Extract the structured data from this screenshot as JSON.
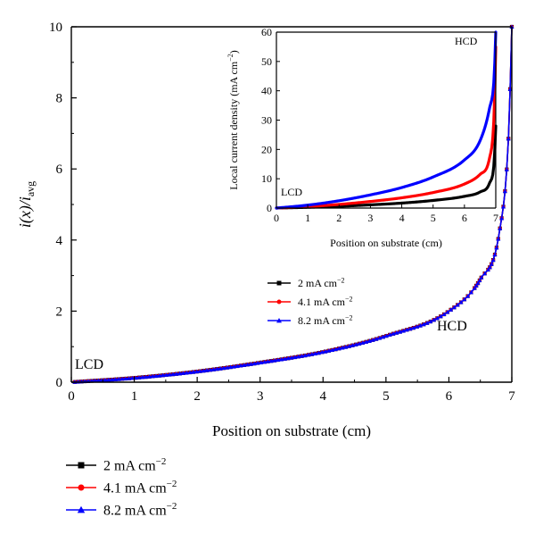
{
  "chart_data": [
    {
      "type": "line",
      "xlabel": "Position on substrate (cm)",
      "ylabel_main": "i(x)/i",
      "ylabel_sub": "avg",
      "xlim": [
        0,
        7
      ],
      "ylim": [
        0,
        10
      ],
      "xticks": [
        "0",
        "1",
        "2",
        "3",
        "4",
        "5",
        "6",
        "7"
      ],
      "yticks": [
        "0",
        "2",
        "4",
        "6",
        "8",
        "10"
      ],
      "annotations": [
        "LCD",
        "HCD"
      ],
      "x": [
        0,
        1,
        2,
        3,
        4,
        5,
        6,
        6.5,
        6.8,
        6.95,
        7
      ],
      "series": [
        {
          "name": "2 mA cm",
          "unit_sup": "−2",
          "color": "#000000",
          "marker": "square",
          "values": [
            0,
            0.12,
            0.3,
            0.55,
            0.85,
            1.3,
            2.0,
            2.9,
            4.2,
            7.0,
            10
          ]
        },
        {
          "name": "4.1 mA cm",
          "unit_sup": "−2",
          "color": "#ff0000",
          "marker": "circle",
          "values": [
            0,
            0.12,
            0.3,
            0.55,
            0.85,
            1.3,
            2.0,
            2.9,
            4.2,
            7.0,
            10
          ]
        },
        {
          "name": "8.2 mA cm",
          "unit_sup": "−2",
          "color": "#0000ff",
          "marker": "triangle",
          "values": [
            0,
            0.12,
            0.3,
            0.55,
            0.85,
            1.3,
            2.0,
            2.9,
            4.2,
            7.0,
            10
          ]
        }
      ],
      "legend_placement": "below plot, left"
    },
    {
      "type": "line",
      "xlabel": "Position on substrate (cm)",
      "ylabel": "Local current density (mA cm",
      "ylabel_sup": "−2",
      "ylabel_end": ")",
      "xlim": [
        0,
        7
      ],
      "ylim": [
        0,
        60
      ],
      "xticks": [
        "0",
        "1",
        "2",
        "3",
        "4",
        "5",
        "6",
        "7"
      ],
      "yticks": [
        "0",
        "10",
        "20",
        "30",
        "40",
        "50",
        "60"
      ],
      "annotations": [
        "LCD",
        "HCD"
      ],
      "x": [
        0,
        1,
        2,
        3,
        4,
        5,
        6,
        6.5,
        6.8,
        6.95,
        7
      ],
      "series": [
        {
          "name": "2 mA cm",
          "unit_sup": "−2",
          "color": "#000000",
          "marker": "square",
          "values": [
            0,
            0.25,
            0.6,
            1.1,
            1.7,
            2.6,
            4.0,
            5.5,
            8.5,
            16,
            28
          ]
        },
        {
          "name": "4.1 mA cm",
          "unit_sup": "−2",
          "color": "#ff0000",
          "marker": "circle",
          "values": [
            0,
            0.5,
            1.25,
            2.25,
            3.5,
            5.3,
            8.2,
            11.5,
            17,
            33,
            55
          ]
        },
        {
          "name": "8.2 mA cm",
          "unit_sup": "−2",
          "color": "#0000ff",
          "marker": "triangle",
          "values": [
            0,
            1.0,
            2.5,
            4.5,
            7.0,
            10.6,
            16.4,
            23,
            34,
            45,
            60
          ]
        }
      ],
      "legend_placement": "below plot, center"
    }
  ]
}
